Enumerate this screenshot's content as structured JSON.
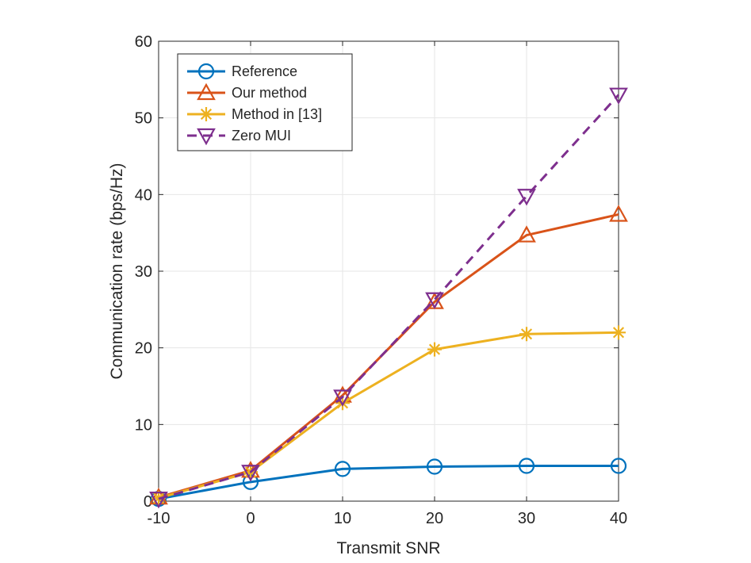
{
  "chart_data": {
    "type": "line",
    "xlabel": "Transmit SNR",
    "ylabel": "Communication rate (bps/Hz)",
    "xlim": [
      -10,
      40
    ],
    "ylim": [
      0,
      60
    ],
    "xticks": [
      -10,
      0,
      10,
      20,
      30,
      40
    ],
    "yticks": [
      0,
      10,
      20,
      30,
      40,
      50,
      60
    ],
    "x": [
      -10,
      0,
      10,
      20,
      30,
      40
    ],
    "grid": true,
    "legend_position": "top-left",
    "series": [
      {
        "name": "Reference",
        "values": [
          0.3,
          2.5,
          4.2,
          4.5,
          4.6,
          4.6
        ],
        "color": "#0072BD",
        "marker": "circle",
        "dash": "solid"
      },
      {
        "name": "Our method",
        "values": [
          0.5,
          4.0,
          13.8,
          26.0,
          34.7,
          37.4
        ],
        "color": "#D95319",
        "marker": "triangle-up",
        "dash": "solid"
      },
      {
        "name": "Method in [13]",
        "values": [
          0.4,
          3.8,
          12.8,
          19.8,
          21.8,
          22.0
        ],
        "color": "#EDB120",
        "marker": "asterisk",
        "dash": "solid"
      },
      {
        "name": "Zero MUI",
        "values": [
          0.3,
          3.8,
          13.6,
          26.3,
          39.8,
          53.0
        ],
        "color": "#7E2F8E",
        "marker": "triangle-down",
        "dash": "dashed"
      }
    ]
  }
}
